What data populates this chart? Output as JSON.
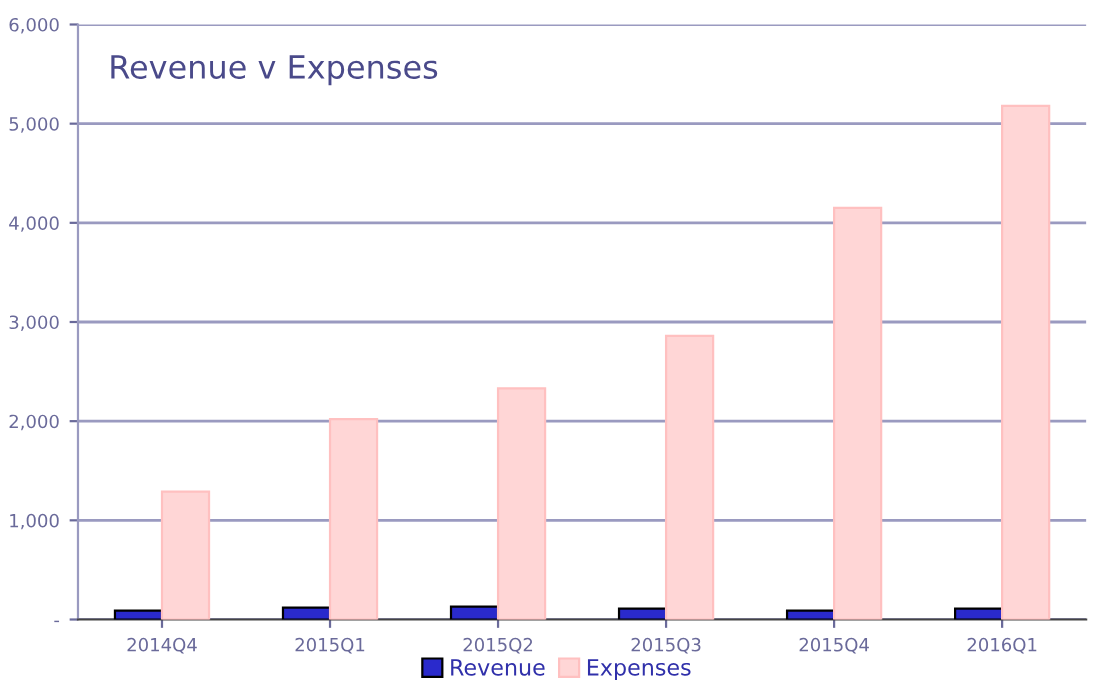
{
  "chart_data": {
    "type": "bar",
    "title": "Revenue v Expenses",
    "categories": [
      "2014Q4",
      "2015Q1",
      "2015Q2",
      "2015Q3",
      "2015Q4",
      "2016Q1"
    ],
    "series": [
      {
        "name": "Revenue",
        "color": "#2a2acc",
        "values": [
          90,
          120,
          130,
          110,
          90,
          110
        ]
      },
      {
        "name": "Expenses",
        "color": "#ffd6d6",
        "values": [
          1290,
          2020,
          2330,
          2860,
          4150,
          5180
        ]
      }
    ],
    "ylim": [
      0,
      6000
    ],
    "yticks": [
      {
        "value": 0,
        "label": "-"
      },
      {
        "value": 1000,
        "label": "1,000"
      },
      {
        "value": 2000,
        "label": "2,000"
      },
      {
        "value": 3000,
        "label": "3,000"
      },
      {
        "value": 4000,
        "label": "4,000"
      },
      {
        "value": 5000,
        "label": "5,000"
      },
      {
        "value": 6000,
        "label": "6,000"
      }
    ],
    "grid": "y",
    "legend": "bottom"
  }
}
